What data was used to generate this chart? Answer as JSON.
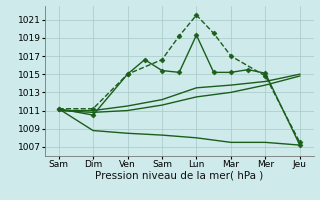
{
  "xlabel": "Pression niveau de la mer( hPa )",
  "x_labels": [
    "Sam",
    "Dim",
    "Ven",
    "Sam",
    "Lun",
    "Mar",
    "Mer",
    "Jeu"
  ],
  "x_positions": [
    0,
    1,
    2,
    3,
    4,
    5,
    6,
    7
  ],
  "ylim": [
    1006.0,
    1022.5
  ],
  "yticks": [
    1007,
    1009,
    1011,
    1013,
    1015,
    1017,
    1019,
    1021
  ],
  "bg_color": "#ceeaea",
  "line_color": "#1a5e1a",
  "grid_color": "#a8c8c8",
  "lines": [
    {
      "x": [
        0,
        1,
        2,
        3,
        3.5,
        4,
        4.5,
        5,
        6,
        7
      ],
      "y": [
        1011.2,
        1011.2,
        1015.0,
        1016.6,
        1019.2,
        1021.5,
        1019.5,
        1017.0,
        1014.8,
        1007.5
      ],
      "marker": "D",
      "markersize": 2.5,
      "linewidth": 1.0,
      "linestyle": "--"
    },
    {
      "x": [
        0,
        1,
        2,
        2.5,
        3,
        3.5,
        4,
        4.5,
        5,
        5.5,
        6,
        7
      ],
      "y": [
        1011.2,
        1010.5,
        1015.0,
        1016.6,
        1015.4,
        1015.2,
        1019.3,
        1015.2,
        1015.2,
        1015.5,
        1015.1,
        1007.2
      ],
      "marker": "D",
      "markersize": 2.5,
      "linewidth": 1.0,
      "linestyle": "-"
    },
    {
      "x": [
        0,
        1,
        2,
        3,
        4,
        5,
        6,
        7
      ],
      "y": [
        1011.0,
        1011.0,
        1011.5,
        1012.2,
        1013.5,
        1013.8,
        1014.2,
        1015.0
      ],
      "marker": null,
      "markersize": 0,
      "linewidth": 1.0,
      "linestyle": "-"
    },
    {
      "x": [
        0,
        1,
        2,
        3,
        4,
        5,
        6,
        7
      ],
      "y": [
        1011.0,
        1010.8,
        1011.0,
        1011.6,
        1012.5,
        1013.0,
        1013.8,
        1014.8
      ],
      "marker": null,
      "markersize": 0,
      "linewidth": 1.0,
      "linestyle": "-"
    },
    {
      "x": [
        0,
        1,
        2,
        3,
        4,
        5,
        6,
        7
      ],
      "y": [
        1011.2,
        1008.8,
        1008.5,
        1008.3,
        1008.0,
        1007.5,
        1007.5,
        1007.2
      ],
      "marker": null,
      "markersize": 0,
      "linewidth": 1.0,
      "linestyle": "-"
    }
  ]
}
